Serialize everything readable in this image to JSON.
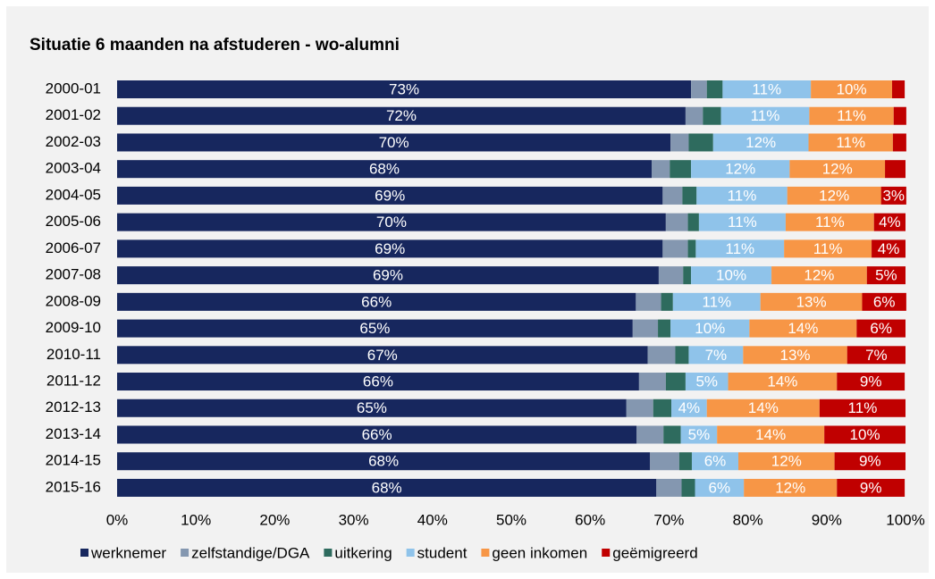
{
  "chart_data": {
    "type": "bar",
    "orientation": "horizontal",
    "stacked": true,
    "title": "Situatie 6 maanden na afstuderen - wo-alumni",
    "categories": [
      "2000-01",
      "2001-02",
      "2002-03",
      "2003-04",
      "2004-05",
      "2005-06",
      "2006-07",
      "2007-08",
      "2008-09",
      "2009-10",
      "2010-11",
      "2011-12",
      "2012-13",
      "2013-14",
      "2014-15",
      "2015-16"
    ],
    "series": [
      {
        "name": "werknemer",
        "color": "#17275e",
        "values": [
          72.8,
          72.1,
          70.2,
          67.8,
          69.2,
          69.6,
          69.2,
          68.7,
          65.8,
          65.4,
          67.3,
          66.2,
          64.6,
          65.9,
          67.6,
          68.4
        ],
        "value_labels": [
          "73%",
          "72%",
          "70%",
          "68%",
          "69%",
          "70%",
          "69%",
          "69%",
          "66%",
          "65%",
          "67%",
          "66%",
          "65%",
          "66%",
          "68%",
          "68%"
        ]
      },
      {
        "name": "zelfstandige/DGA",
        "color": "#8497b0",
        "values": [
          2.0,
          2.2,
          2.3,
          2.3,
          2.5,
          2.8,
          3.2,
          3.1,
          3.2,
          3.2,
          3.5,
          3.4,
          3.4,
          3.4,
          3.7,
          3.2
        ]
      },
      {
        "name": "uitkering",
        "color": "#2e6b5e",
        "values": [
          2.0,
          2.3,
          3.1,
          2.7,
          1.8,
          1.4,
          1.0,
          1.0,
          1.5,
          1.6,
          1.7,
          2.5,
          2.3,
          2.2,
          1.6,
          1.7
        ]
      },
      {
        "name": "student",
        "color": "#8fc3ea",
        "values": [
          11.2,
          11.2,
          12.1,
          12.5,
          11.5,
          11.0,
          11.2,
          10.2,
          11.1,
          10.0,
          6.9,
          5.4,
          4.5,
          4.6,
          5.9,
          6.2
        ],
        "value_labels": [
          "11%",
          "11%",
          "12%",
          "12%",
          "11%",
          "11%",
          "11%",
          "10%",
          "11%",
          "10%",
          "7%",
          "5%",
          "4%",
          "5%",
          "6%",
          "6%"
        ]
      },
      {
        "name": "geen inkomen",
        "color": "#f79646",
        "values": [
          10.3,
          10.7,
          10.7,
          12.1,
          11.9,
          11.2,
          11.1,
          12.1,
          12.9,
          13.6,
          13.2,
          13.8,
          14.3,
          13.6,
          12.2,
          11.8
        ],
        "value_labels": [
          "10%",
          "11%",
          "11%",
          "12%",
          "12%",
          "11%",
          "11%",
          "12%",
          "13%",
          "14%",
          "13%",
          "14%",
          "14%",
          "14%",
          "12%",
          "12%"
        ]
      },
      {
        "name": "geëmigreerd",
        "color": "#c00000",
        "values": [
          1.6,
          1.6,
          1.7,
          2.6,
          3.2,
          4.0,
          4.3,
          4.9,
          5.6,
          6.2,
          7.4,
          8.6,
          10.9,
          10.3,
          9.0,
          8.6
        ],
        "value_labels": [
          null,
          null,
          null,
          null,
          "3%",
          "4%",
          "4%",
          "5%",
          "6%",
          "6%",
          "7%",
          "9%",
          "11%",
          "10%",
          "9%",
          "9%"
        ]
      }
    ],
    "xlim": [
      0,
      100
    ],
    "xticks": [
      {
        "value": 0,
        "label": "0%"
      },
      {
        "value": 10,
        "label": "10%"
      },
      {
        "value": 20,
        "label": "20%"
      },
      {
        "value": 30,
        "label": "30%"
      },
      {
        "value": 40,
        "label": "40%"
      },
      {
        "value": 50,
        "label": "50%"
      },
      {
        "value": 60,
        "label": "60%"
      },
      {
        "value": 70,
        "label": "70%"
      },
      {
        "value": 80,
        "label": "80%"
      },
      {
        "value": 90,
        "label": "90%"
      },
      {
        "value": 100,
        "label": "100%"
      }
    ],
    "legend": "bottom"
  }
}
